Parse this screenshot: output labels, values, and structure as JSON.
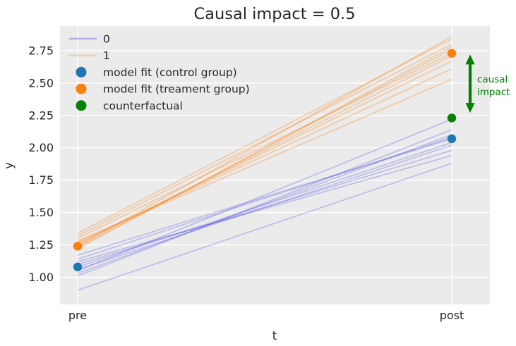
{
  "figure": {
    "title": "Causal impact = 0.5"
  },
  "colors": {
    "plot_background": "#ebebeb",
    "grid": "#ffffff",
    "text": "#262626",
    "control_marker": "#1f77b4",
    "treatment_marker": "#ff7f0e",
    "counterfactual_marker": "#068006",
    "annotation_green": "#008000",
    "group0_line": "rgba(70,70,235,0.28)",
    "group1_line": "rgba(255,127,14,0.33)",
    "legend_line_0": "#b1b1e6",
    "legend_line_1": "#f2cfae"
  },
  "chart_data": {
    "type": "line",
    "title": "Causal impact = 0.5",
    "xlabel": "t",
    "ylabel": "y",
    "x_categories": [
      "pre",
      "post"
    ],
    "yticks": [
      "1.00",
      "1.25",
      "1.50",
      "1.75",
      "2.00",
      "2.25",
      "2.50",
      "2.75"
    ],
    "ylim": [
      0.79,
      2.94
    ],
    "grid": true,
    "legend_position": "upper left",
    "series": [
      {
        "name": "0",
        "description": "individual control-group trajectories",
        "color": "rgba(70,70,235,0.28)",
        "lines": [
          [
            1.17,
            2.07
          ],
          [
            1.01,
            2.14
          ],
          [
            1.12,
            1.94
          ],
          [
            1.05,
            2.22
          ],
          [
            1.08,
            2.04
          ],
          [
            1.03,
            2.1
          ],
          [
            1.1,
            1.98
          ],
          [
            1.14,
            2.08
          ],
          [
            1.06,
            2.02
          ],
          [
            0.9,
            1.88
          ]
        ]
      },
      {
        "name": "1",
        "description": "individual treatment-group trajectories",
        "color": "rgba(255,127,14,0.33)",
        "lines": [
          [
            1.3,
            2.73
          ],
          [
            1.24,
            2.86
          ],
          [
            1.27,
            2.61
          ],
          [
            1.22,
            2.78
          ],
          [
            1.34,
            2.84
          ],
          [
            1.25,
            2.71
          ],
          [
            1.28,
            2.53
          ],
          [
            1.23,
            2.76
          ],
          [
            1.32,
            2.8
          ],
          [
            1.26,
            2.67
          ]
        ]
      }
    ],
    "markers": [
      {
        "name": "model fit (control group)",
        "color": "#1f77b4",
        "pre": 1.08,
        "post": 2.07
      },
      {
        "name": "model fit (treament group)",
        "color": "#ff7f0e",
        "pre": 1.24,
        "post": 2.73
      },
      {
        "name": "counterfactual",
        "color": "#068006",
        "post": 2.23
      }
    ],
    "annotation": {
      "lines": [
        "causal",
        "impact"
      ],
      "color": "#008000",
      "arrow_span": [
        2.27,
        2.72
      ]
    },
    "legend": {
      "items": [
        {
          "label": "0",
          "marker": "line",
          "color": "#b1b1e6"
        },
        {
          "label": "1",
          "marker": "line",
          "color": "#f2cfae"
        },
        {
          "label": "model fit (control group)",
          "marker": "dot",
          "color": "#1f77b4"
        },
        {
          "label": "model fit (treament group)",
          "marker": "dot",
          "color": "#ff7f0e"
        },
        {
          "label": "counterfactual",
          "marker": "dot",
          "color": "#068006"
        }
      ]
    }
  }
}
